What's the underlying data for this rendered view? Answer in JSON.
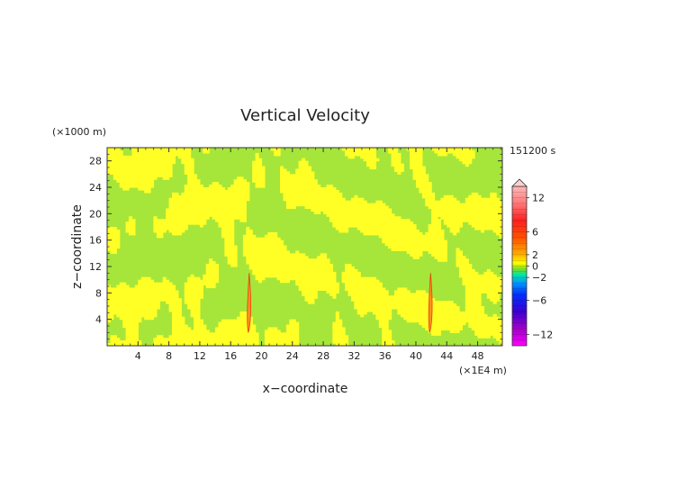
{
  "chart_data": {
    "type": "heatmap",
    "title": "Vertical Velocity",
    "xlabel": "x−coordinate",
    "ylabel": "z−coordinate",
    "x_unit": "(×1E4 m)",
    "y_unit": "(×1000 m)",
    "time_label": "151200 s",
    "xlim": [
      0,
      51.2
    ],
    "ylim": [
      0,
      30
    ],
    "x_ticks": [
      4,
      8,
      12,
      16,
      20,
      24,
      28,
      32,
      36,
      40,
      44,
      48
    ],
    "y_ticks": [
      4,
      8,
      12,
      16,
      20,
      24,
      28
    ],
    "colorbar": {
      "range": [
        -14,
        14
      ],
      "tick_values": [
        12,
        6,
        2,
        0,
        -2,
        -6,
        -12
      ],
      "tick_labels": [
        "12",
        "6",
        "2",
        "0",
        "−2",
        "−6",
        "−12"
      ],
      "stops": [
        {
          "v": -14,
          "c": "#ff00ff"
        },
        {
          "v": -11,
          "c": "#a000c8"
        },
        {
          "v": -8,
          "c": "#3c00d0"
        },
        {
          "v": -5,
          "c": "#0030ff"
        },
        {
          "v": -3,
          "c": "#0096ff"
        },
        {
          "v": -1.5,
          "c": "#00e8a0"
        },
        {
          "v": -0.5,
          "c": "#7cdc20"
        },
        {
          "v": 0.5,
          "c": "#ffff00"
        },
        {
          "v": 2,
          "c": "#ffb000"
        },
        {
          "v": 5,
          "c": "#ff5000"
        },
        {
          "v": 8,
          "c": "#ff2020"
        },
        {
          "v": 11,
          "c": "#ff7878"
        },
        {
          "v": 14,
          "c": "#ffb8b8"
        }
      ]
    },
    "field": {
      "background_value": 0,
      "palette_low": "#a6e63a",
      "palette_high": "#ffff26",
      "updraft_columns": [
        {
          "x": 18.4,
          "z_min": 2,
          "z_max": 11,
          "peak_value": 8
        },
        {
          "x": 41.9,
          "z_min": 2,
          "z_max": 11,
          "peak_value": 8
        }
      ]
    }
  }
}
